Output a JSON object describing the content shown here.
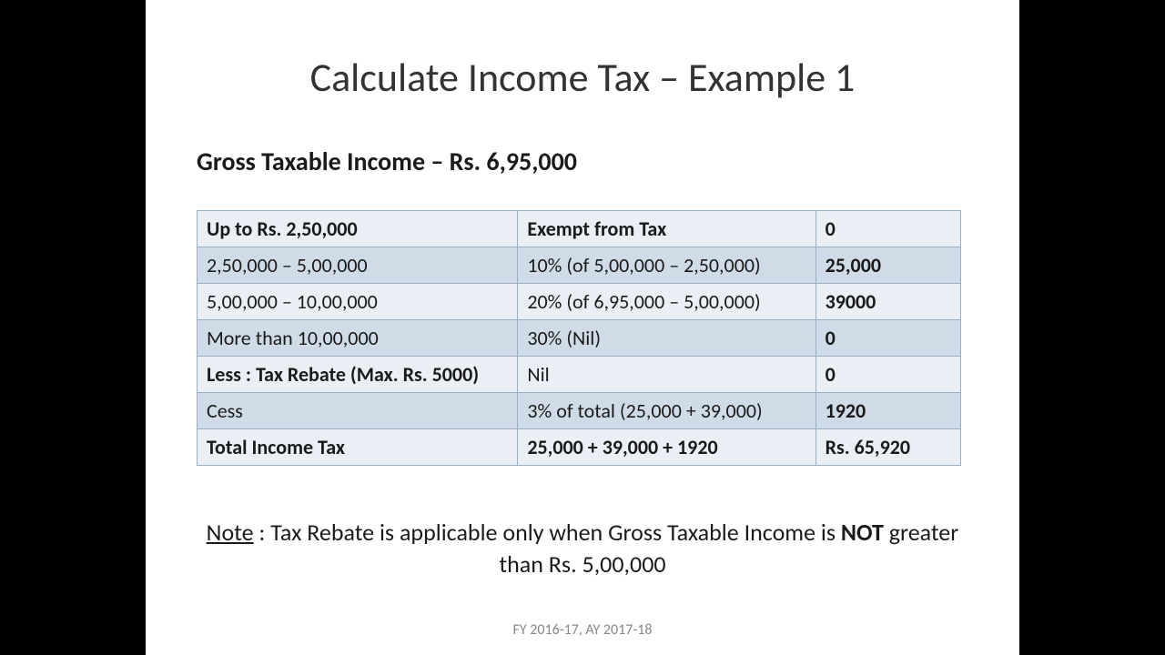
{
  "title": "Calculate Income Tax – Example 1",
  "subtitle": "Gross Taxable Income – Rs. 6,95,000",
  "table": {
    "rows": [
      {
        "slab": "Up to Rs. 2,50,000",
        "slab_bold": true,
        "rate": "Exempt from Tax",
        "rate_bold": true,
        "amount": "0",
        "amount_bold": true,
        "shade": "light"
      },
      {
        "slab": "2,50,000 – 5,00,000",
        "slab_bold": false,
        "rate": "10% (of 5,00,000 – 2,50,000)",
        "rate_bold": false,
        "amount": "25,000",
        "amount_bold": true,
        "shade": "dark"
      },
      {
        "slab": "5,00,000 – 10,00,000",
        "slab_bold": false,
        "rate": "20% (of 6,95,000 – 5,00,000)",
        "rate_bold": false,
        "amount": "39000",
        "amount_bold": true,
        "shade": "light"
      },
      {
        "slab": "More than 10,00,000",
        "slab_bold": false,
        "rate": "30% (Nil)",
        "rate_bold": false,
        "amount": "0",
        "amount_bold": true,
        "shade": "dark"
      },
      {
        "slab": "Less : Tax Rebate (Max. Rs. 5000)",
        "slab_bold": true,
        "rate": "Nil",
        "rate_bold": false,
        "amount": "0",
        "amount_bold": true,
        "shade": "light"
      },
      {
        "slab": "Cess",
        "slab_bold": false,
        "rate": "3% of total (25,000 + 39,000)",
        "rate_bold": false,
        "amount": "1920",
        "amount_bold": true,
        "shade": "dark"
      },
      {
        "slab": "Total Income Tax",
        "slab_bold": true,
        "rate": "25,000 + 39,000 + 1920",
        "rate_bold": true,
        "amount": "Rs. 65,920",
        "amount_bold": true,
        "shade": "light"
      }
    ]
  },
  "note": {
    "label": "Note",
    "text_before": " : Tax Rebate is applicable only when Gross Taxable Income is ",
    "emph": "NOT",
    "text_after": " greater than Rs. 5,00,000"
  },
  "footer": "FY 2016-17, AY 2017-18",
  "colors": {
    "page_bg": "#000000",
    "slide_bg": "#ffffff",
    "row_light": "#e9eff5",
    "row_dark": "#cfdce8",
    "border": "#9ab0c5",
    "text": "#1a1a1a",
    "footer_text": "#888888"
  }
}
